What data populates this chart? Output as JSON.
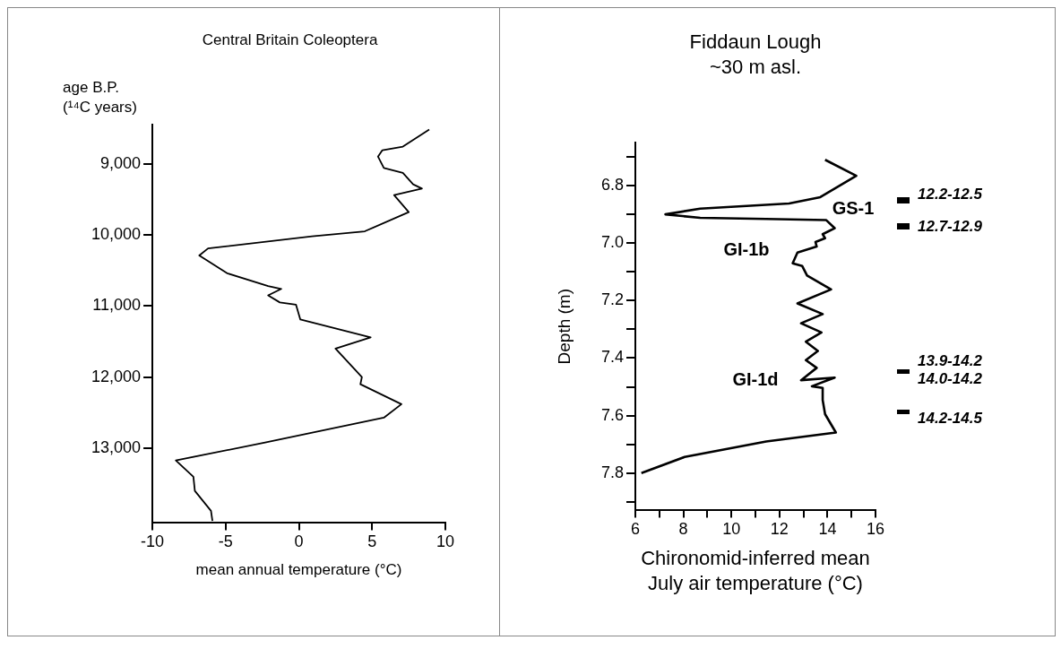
{
  "chart_data": [
    {
      "type": "line",
      "title": "Central Britain Coleoptera",
      "xlabel": "mean annual temperature (°C)",
      "ylabel": "age B.P. (¹⁴C years)",
      "xlim": [
        -10,
        10
      ],
      "xticks": [
        -10,
        -5,
        0,
        5,
        10
      ],
      "ylim": [
        14050,
        8450
      ],
      "yticks": [
        {
          "value": 9000,
          "label": "9,000"
        },
        {
          "value": 10000,
          "label": "10,000"
        },
        {
          "value": 11000,
          "label": "11,000"
        },
        {
          "value": 12000,
          "label": "12,000"
        },
        {
          "value": 13000,
          "label": "13,000"
        }
      ],
      "series": [
        {
          "color": "#000000",
          "x": [
            8.9,
            7.1,
            5.7,
            5.4,
            5.8,
            7.1,
            7.8,
            8.4,
            6.5,
            7.5,
            4.5,
            0.9,
            -6.2,
            -6.8,
            -4.9,
            -2.1,
            -1.2,
            -2.1,
            -1.3,
            -0.2,
            0.1,
            4.9,
            2.5,
            4.3,
            4.2,
            7.0,
            5.8,
            -2.3,
            -8.4,
            -7.2,
            -7.1,
            -6.0,
            -5.9
          ],
          "values": [
            8520,
            8760,
            8810,
            8900,
            9060,
            9130,
            9290,
            9350,
            9440,
            9680,
            9950,
            10020,
            10190,
            10290,
            10540,
            10720,
            10760,
            10850,
            10950,
            10980,
            11190,
            11440,
            11600,
            12000,
            12100,
            12380,
            12570,
            12920,
            13170,
            13400,
            13600,
            13880,
            14020
          ]
        }
      ]
    },
    {
      "type": "line",
      "title": "Fiddaun Lough",
      "subtitle": "~30 m asl.",
      "xlabel": "Chironomid-inferred mean July air temperature (°C)",
      "ylabel": "Depth (m)",
      "xlim": [
        6,
        16
      ],
      "xticks": [
        6,
        {
          "value": 7,
          "label": null
        },
        8,
        {
          "value": 9,
          "label": null
        },
        10,
        {
          "value": 11,
          "label": null
        },
        12,
        {
          "value": 13,
          "label": null
        },
        14,
        {
          "value": 15,
          "label": null
        },
        16
      ],
      "ylim": [
        7.93,
        6.65
      ],
      "yticks": [
        {
          "value": 6.7,
          "label": null
        },
        6.8,
        {
          "value": 6.9,
          "label": null
        },
        {
          "value": 7.0,
          "label": "7.0"
        },
        {
          "value": 7.1,
          "label": null
        },
        7.2,
        {
          "value": 7.3,
          "label": null
        },
        7.4,
        {
          "value": 7.5,
          "label": null
        },
        7.6,
        {
          "value": 7.7,
          "label": null
        },
        7.8,
        {
          "value": 7.9,
          "label": null
        }
      ],
      "series": [
        {
          "color": "#000000",
          "x": [
            13.9,
            15.2,
            13.7,
            12.4,
            8.7,
            7.25,
            8.7,
            11.45,
            13.95,
            14.3,
            13.8,
            13.9,
            13.5,
            13.55,
            12.75,
            12.55,
            12.95,
            13.15,
            14.15,
            12.75,
            13.8,
            12.9,
            13.75,
            13.1,
            13.6,
            13.1,
            13.55,
            12.9,
            14.3,
            13.35,
            13.8,
            13.8,
            13.9,
            14.35,
            11.45,
            8.05,
            6.25
          ],
          "values": [
            6.71,
            6.766,
            6.84,
            6.862,
            6.88,
            6.9,
            6.912,
            6.916,
            6.92,
            6.948,
            6.969,
            6.983,
            6.996,
            7.012,
            7.033,
            7.07,
            7.08,
            7.113,
            7.161,
            7.21,
            7.247,
            7.279,
            7.311,
            7.343,
            7.375,
            7.407,
            7.434,
            7.477,
            7.468,
            7.498,
            7.504,
            7.546,
            7.595,
            7.659,
            7.69,
            7.744,
            7.8
          ]
        }
      ],
      "annotations": [
        "GS-1",
        "GI-1b",
        "GI-1d",
        "12.2-12.5",
        "12.7-12.9",
        "13.9-14.2",
        "14.0-14.2",
        "14.2-14.5"
      ]
    }
  ]
}
